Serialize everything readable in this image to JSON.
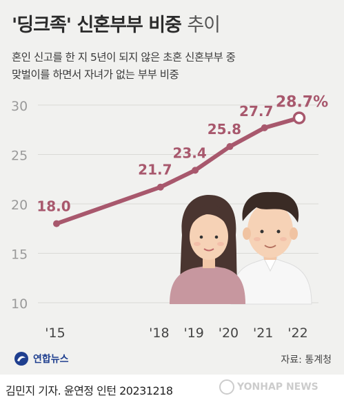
{
  "header": {
    "title_bold": "'딩크족' 신혼부부 비중",
    "title_light": "추이",
    "subtitle_lines": [
      "혼인 신고를 한 지 5년이 되지 않은 초혼 신혼부부 중",
      "맞벌이를 하면서 자녀가 없는 부부 비중"
    ]
  },
  "chart_data": {
    "type": "line",
    "title": "'딩크족' 신혼부부 비중 추이",
    "x": [
      "'15",
      "'18",
      "'19",
      "'20",
      "'21",
      "'22"
    ],
    "x_numeric": [
      2015,
      2018,
      2019,
      2020,
      2021,
      2022
    ],
    "series": [
      {
        "values": [
          18.0,
          21.7,
          23.4,
          25.8,
          27.7,
          28.7
        ],
        "labels": [
          "18.0",
          "21.7",
          "23.4",
          "25.8",
          "27.7",
          "28.7%"
        ]
      }
    ],
    "yticks": [
      "30",
      "25",
      "20",
      "15",
      "10"
    ],
    "ylim": [
      10,
      30
    ],
    "grid": true,
    "line_color": "#a8586d",
    "last_label_color": "#a8586d",
    "label_color": "#a8586d"
  },
  "footer": {
    "logo_text": "연합뉴스",
    "source": "자료: 통계청",
    "credit": "김민지 기자. 윤연정 인턴  20231218",
    "watermark": "YONHAP NEWS"
  }
}
